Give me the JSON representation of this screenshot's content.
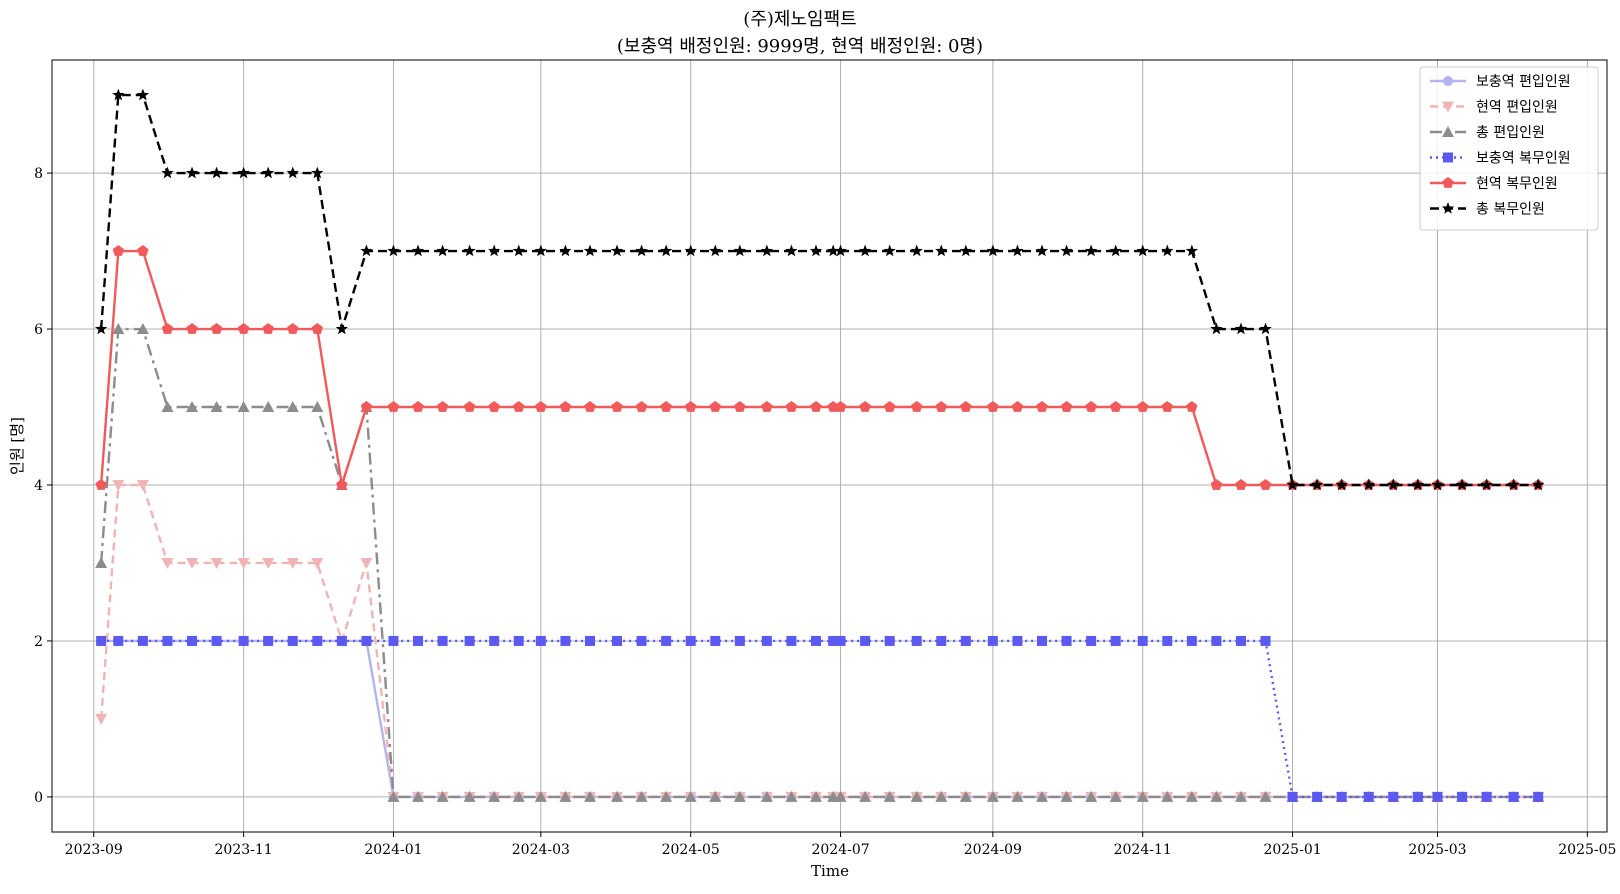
{
  "chart_data": {
    "type": "line",
    "title": "(주)제노임팩트",
    "subtitle": "(보충역 배정인원: 9999명, 현역 배정인원: 0명)",
    "xlabel": "Time",
    "ylabel": "인원 [명]",
    "grid": true,
    "legend_position": "top-right",
    "xlim": [
      "2023-08-15",
      "2025-05-09"
    ],
    "ylim": [
      -0.45,
      9.45
    ],
    "xticks": [
      "2023-09",
      "2023-11",
      "2024-01",
      "2024-03",
      "2024-05",
      "2024-07",
      "2024-09",
      "2024-11",
      "2025-01",
      "2025-03",
      "2025-05"
    ],
    "yticks": [
      0,
      2,
      4,
      6,
      8
    ],
    "x": [
      "2023-09-04",
      "2023-09-11",
      "2023-09-21",
      "2023-10-01",
      "2023-10-11",
      "2023-10-21",
      "2023-11-01",
      "2023-11-11",
      "2023-11-21",
      "2023-12-01",
      "2023-12-11",
      "2023-12-21",
      "2024-01-01",
      "2024-01-11",
      "2024-01-21",
      "2024-02-01",
      "2024-02-11",
      "2024-02-21",
      "2024-03-01",
      "2024-03-11",
      "2024-03-21",
      "2024-04-01",
      "2024-04-11",
      "2024-04-21",
      "2024-05-01",
      "2024-05-11",
      "2024-05-21",
      "2024-06-01",
      "2024-06-11",
      "2024-06-21",
      "2024-06-28",
      "2024-07-01",
      "2024-07-11",
      "2024-07-21",
      "2024-08-01",
      "2024-08-11",
      "2024-08-21",
      "2024-09-01",
      "2024-09-11",
      "2024-09-21",
      "2024-10-01",
      "2024-10-11",
      "2024-10-21",
      "2024-11-01",
      "2024-11-11",
      "2024-11-21",
      "2024-12-01",
      "2024-12-11",
      "2024-12-21",
      "2025-01-01",
      "2025-01-11",
      "2025-01-21",
      "2025-02-01",
      "2025-02-11",
      "2025-02-21",
      "2025-03-01",
      "2025-03-11",
      "2025-03-21",
      "2025-04-01",
      "2025-04-11"
    ],
    "series": [
      {
        "name": "보충역 편입인원",
        "color": "#b4b4f0",
        "dash": "",
        "marker": "circle",
        "values": [
          2,
          2,
          2,
          2,
          2,
          2,
          2,
          2,
          2,
          2,
          2,
          2,
          0,
          0,
          0,
          0,
          0,
          0,
          0,
          0,
          0,
          0,
          0,
          0,
          0,
          0,
          0,
          0,
          0,
          0,
          0,
          0,
          0,
          0,
          0,
          0,
          0,
          0,
          0,
          0,
          0,
          0,
          0,
          0,
          0,
          0,
          0,
          0,
          0,
          0,
          0,
          0,
          0,
          0,
          0,
          0,
          0,
          0,
          0,
          0
        ]
      },
      {
        "name": "현역 편입인원",
        "color": "#f0b4b4",
        "dash": "8,5",
        "marker": "triangle-down",
        "values": [
          1,
          4,
          4,
          3,
          3,
          3,
          3,
          3,
          3,
          3,
          2,
          3,
          0,
          0,
          0,
          0,
          0,
          0,
          0,
          0,
          0,
          0,
          0,
          0,
          0,
          0,
          0,
          0,
          0,
          0,
          0,
          0,
          0,
          0,
          0,
          0,
          0,
          0,
          0,
          0,
          0,
          0,
          0,
          0,
          0,
          0,
          0,
          0,
          0,
          0,
          0,
          0,
          0,
          0,
          0,
          0,
          0,
          0,
          0,
          0
        ]
      },
      {
        "name": "총 편입인원",
        "color": "#8c8c8c",
        "dash": "12,5,3,5",
        "marker": "triangle-up",
        "values": [
          3,
          6,
          6,
          5,
          5,
          5,
          5,
          5,
          5,
          5,
          4,
          5,
          0,
          0,
          0,
          0,
          0,
          0,
          0,
          0,
          0,
          0,
          0,
          0,
          0,
          0,
          0,
          0,
          0,
          0,
          0,
          0,
          0,
          0,
          0,
          0,
          0,
          0,
          0,
          0,
          0,
          0,
          0,
          0,
          0,
          0,
          0,
          0,
          0,
          0,
          0,
          0,
          0,
          0,
          0,
          0,
          0,
          0,
          0,
          0
        ]
      },
      {
        "name": "보충역 복무인원",
        "color": "#5a5af0",
        "dash": "2,4",
        "marker": "square",
        "values": [
          2,
          2,
          2,
          2,
          2,
          2,
          2,
          2,
          2,
          2,
          2,
          2,
          2,
          2,
          2,
          2,
          2,
          2,
          2,
          2,
          2,
          2,
          2,
          2,
          2,
          2,
          2,
          2,
          2,
          2,
          2,
          2,
          2,
          2,
          2,
          2,
          2,
          2,
          2,
          2,
          2,
          2,
          2,
          2,
          2,
          2,
          2,
          2,
          2,
          0,
          0,
          0,
          0,
          0,
          0,
          0,
          0,
          0,
          0,
          0
        ]
      },
      {
        "name": "현역 복무인원",
        "color": "#f05a5a",
        "dash": "",
        "marker": "pentagon",
        "values": [
          4,
          7,
          7,
          6,
          6,
          6,
          6,
          6,
          6,
          6,
          4,
          5,
          5,
          5,
          5,
          5,
          5,
          5,
          5,
          5,
          5,
          5,
          5,
          5,
          5,
          5,
          5,
          5,
          5,
          5,
          5,
          5,
          5,
          5,
          5,
          5,
          5,
          5,
          5,
          5,
          5,
          5,
          5,
          5,
          5,
          5,
          4,
          4,
          4,
          4,
          4,
          4,
          4,
          4,
          4,
          4,
          4,
          4,
          4,
          4
        ]
      },
      {
        "name": "총 복무인원",
        "color": "#000000",
        "dash": "9,5",
        "marker": "star",
        "values": [
          6,
          9,
          9,
          8,
          8,
          8,
          8,
          8,
          8,
          8,
          6,
          7,
          7,
          7,
          7,
          7,
          7,
          7,
          7,
          7,
          7,
          7,
          7,
          7,
          7,
          7,
          7,
          7,
          7,
          7,
          7,
          7,
          7,
          7,
          7,
          7,
          7,
          7,
          7,
          7,
          7,
          7,
          7,
          7,
          7,
          7,
          6,
          6,
          6,
          4,
          4,
          4,
          4,
          4,
          4,
          4,
          4,
          4,
          4,
          4
        ]
      }
    ]
  }
}
